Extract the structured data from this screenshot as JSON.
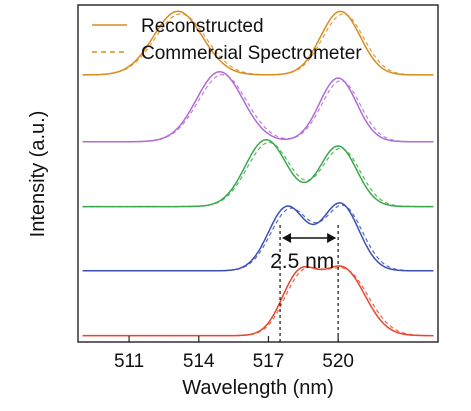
{
  "chart_data": {
    "type": "line",
    "title": "",
    "xlabel": "Wavelength (nm)",
    "ylabel": "Intensity (a.u.)",
    "xlim": [
      508.8,
      524.3
    ],
    "ylim": [
      0,
      5.3
    ],
    "xticks": [
      511,
      514,
      517,
      520
    ],
    "tick_labels": [
      "511",
      "514",
      "517",
      "520"
    ],
    "legend": {
      "placement": "top-left",
      "entries": [
        {
          "label": "Reconstructed",
          "style": "solid"
        },
        {
          "label": "Commercial Spectrometer",
          "style": "dashed"
        }
      ]
    },
    "line_styles": {
      "reconstructed": "solid",
      "commercial": "dashed"
    },
    "series": [
      {
        "color": "#d98c1e",
        "offset": 4.2,
        "peaks": [
          {
            "center": 513.1,
            "height": 1.0,
            "width": 1.05
          },
          {
            "center": 520.1,
            "height": 1.0,
            "width": 0.85
          }
        ]
      },
      {
        "color": "#b16cd6",
        "offset": 3.15,
        "peaks": [
          {
            "center": 514.9,
            "height": 1.1,
            "width": 1.0
          },
          {
            "center": 520.0,
            "height": 1.0,
            "width": 0.8
          }
        ]
      },
      {
        "color": "#3aa84c",
        "offset": 2.13,
        "peaks": [
          {
            "center": 516.9,
            "height": 1.05,
            "width": 0.9
          },
          {
            "center": 520.0,
            "height": 0.95,
            "width": 0.8
          }
        ]
      },
      {
        "color": "#3a50b8",
        "offset": 1.12,
        "peaks": [
          {
            "center": 517.8,
            "height": 1.0,
            "width": 0.8
          },
          {
            "center": 520.1,
            "height": 1.05,
            "width": 0.8
          }
        ]
      },
      {
        "color": "#e8462e",
        "offset": 0.1,
        "peaks": [
          {
            "center": 518.3,
            "height": 0.9,
            "width": 0.75
          },
          {
            "center": 520.2,
            "height": 1.05,
            "width": 0.95
          }
        ]
      }
    ],
    "annotation": {
      "text": "2.5 nm",
      "markers_x": [
        517.5,
        520.0
      ]
    }
  }
}
